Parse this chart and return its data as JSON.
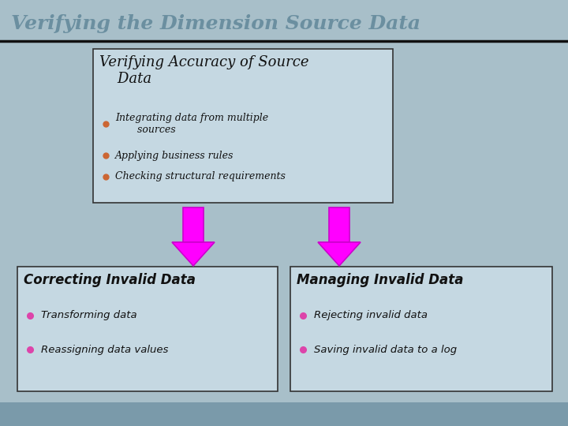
{
  "title": "Verifying the Dimension Source Data",
  "title_color": "#6b8fa0",
  "title_fontsize": 18,
  "bg_color": "#a8bfc9",
  "header_bg": "#a8bfc9",
  "footer_bg": "#7a9aaa",
  "box_bg": "#c5d8e2",
  "box_border": "#333333",
  "arrow_color": "#ff00ff",
  "arrow_border": "#cc00cc",
  "bullet_color_top": "#cc6633",
  "bullet_color_bottom": "#dd44aa",
  "title_line_color": "#111111",
  "text_color": "#111111",
  "top_box_title": "Verifying Accuracy of Source\n    Data",
  "top_box_bullets": [
    "Integrating data from multiple\n       sources",
    "Applying business rules",
    "Checking structural requirements"
  ],
  "bottom_left_title": "Correcting Invalid Data",
  "bottom_left_bullets": [
    "Transforming data",
    "Reassigning data values"
  ],
  "bottom_right_title": "Managing Invalid Data",
  "bottom_right_bullets": [
    "Rejecting invalid data",
    "Saving invalid data to a log"
  ]
}
